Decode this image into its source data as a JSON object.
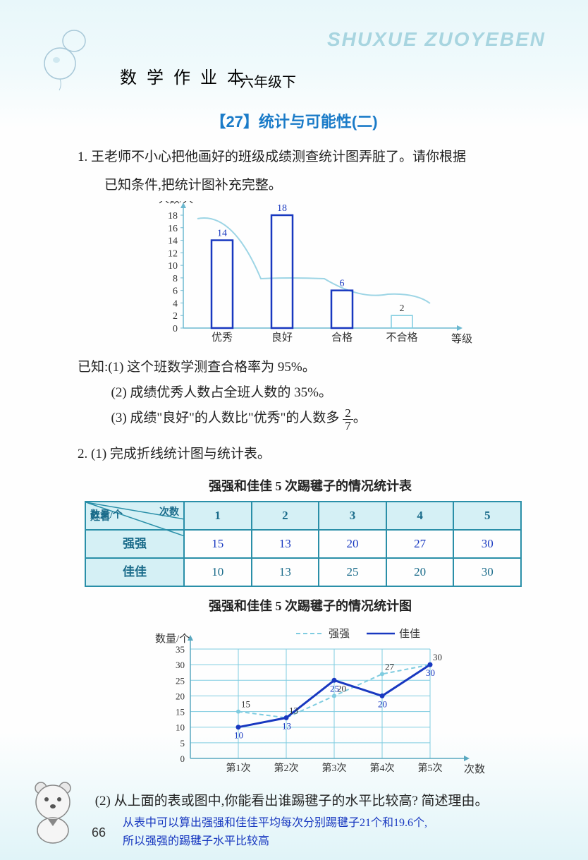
{
  "watermark": "SHUXUE ZUOYEBEN",
  "book_title": "数 学 作 业 本",
  "grade": "六年级下",
  "section_title": "【27】统计与可能性(二)",
  "q1": {
    "num": "1.",
    "text_l1": "王老师不小心把他画好的班级成绩测查统计图弄脏了。请你根据",
    "text_l2": "已知条件,把统计图补充完整。",
    "yaxis_label": "人数/人",
    "xaxis_label": "等级",
    "yticks": [
      0,
      2,
      4,
      6,
      8,
      10,
      12,
      14,
      16,
      18
    ],
    "categories": [
      "优秀",
      "良好",
      "合格",
      "不合格"
    ],
    "values": [
      14,
      18,
      6,
      2
    ],
    "value_labels": [
      "14",
      "18",
      "6",
      "2"
    ],
    "handwritten_mask": [
      true,
      true,
      true,
      false
    ],
    "bar_colors": {
      "outline": "#1838c0",
      "original_outline": "#7fcce0"
    },
    "given_prefix": "已知:",
    "given": [
      "(1) 这个班数学测查合格率为 95%。",
      "(2) 成绩优秀人数占全班人数的 35%。",
      "(3) 成绩\"良好\"的人数比\"优秀\"的人数多"
    ],
    "frac_n": "2",
    "frac_d": "7",
    "frac_suffix": "。"
  },
  "q2": {
    "num": "2.",
    "part1": "(1) 完成折线统计图与统计表。",
    "table_title": "强强和佳佳 5 次踢毽子的情况统计表",
    "diag_labels": {
      "top": "次数",
      "mid": "数量/个",
      "bot": "姓名"
    },
    "col_headers": [
      "1",
      "2",
      "3",
      "4",
      "5"
    ],
    "rows": [
      {
        "name": "强强",
        "cells": [
          "15",
          "13",
          "20",
          "27",
          "30"
        ],
        "handwritten": [
          true,
          true,
          true,
          true,
          true
        ]
      },
      {
        "name": "佳佳",
        "cells": [
          "10",
          "13",
          "25",
          "20",
          "30"
        ],
        "handwritten": [
          false,
          false,
          false,
          false,
          false
        ]
      }
    ],
    "chart_title": "强强和佳佳 5 次踢毽子的情况统计图",
    "chart": {
      "yaxis_label": "数量/个",
      "xaxis_label": "次数",
      "yticks": [
        0,
        5,
        10,
        15,
        20,
        25,
        30,
        35
      ],
      "xticks": [
        "第1次",
        "第2次",
        "第3次",
        "第4次",
        "第5次"
      ],
      "legend": [
        {
          "name": "强强",
          "style": "dashed",
          "color": "#7fcce0"
        },
        {
          "name": "佳佳",
          "style": "solid",
          "color": "#1838c0"
        }
      ],
      "series_qq": [
        15,
        13,
        20,
        27,
        30
      ],
      "series_jj": [
        10,
        13,
        25,
        20,
        30
      ],
      "qq_labels": [
        "15",
        "13",
        "20",
        "27",
        "30"
      ],
      "jj_labels": [
        "10",
        "13",
        "25",
        "20",
        "30"
      ],
      "grid_color": "#7fcce0"
    },
    "part2_prefix": "(2)",
    "part2": "从上面的表或图中,你能看出谁踢毽子的水平比较高? 简述理由。",
    "answer_l1": "从表中可以算出强强和佳佳平均每次分别踢毽子21个和19.6个,",
    "answer_l2": "所以强强的踢毽子水平比较高"
  },
  "page_num": "66"
}
